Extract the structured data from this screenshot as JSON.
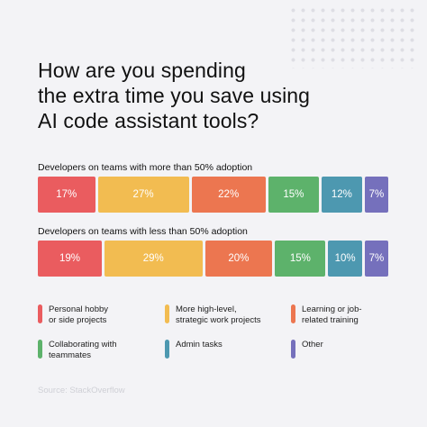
{
  "title_lines": [
    "How are you spending",
    "the extra time you save using",
    "AI code assistant tools?"
  ],
  "chart_data": {
    "type": "bar",
    "stacked": true,
    "orientation": "horizontal",
    "unit": "%",
    "categories": [
      "Developers on teams with more than 50% adoption",
      "Developers on teams with less than 50% adoption"
    ],
    "series": [
      {
        "name": "Personal hobby or side projects",
        "color": "#ea5c5f",
        "values": [
          17,
          19
        ]
      },
      {
        "name": "More high-level, strategic work projects",
        "color": "#f2bc51",
        "values": [
          27,
          29
        ]
      },
      {
        "name": "Learning or job-related training",
        "color": "#ec7650",
        "values": [
          22,
          20
        ]
      },
      {
        "name": "Collaborating with teammates",
        "color": "#5db26b",
        "values": [
          15,
          15
        ]
      },
      {
        "name": "Admin tasks",
        "color": "#4d98b0",
        "values": [
          12,
          10
        ]
      },
      {
        "name": "Other",
        "color": "#7570bc",
        "values": [
          7,
          7
        ]
      }
    ],
    "data_labels": [
      [
        "17%",
        "27%",
        "22%",
        "15%",
        "12%",
        "7%"
      ],
      [
        "19%",
        "29%",
        "20%",
        "15%",
        "10%",
        "7%"
      ]
    ]
  },
  "legend": [
    {
      "text": "Personal hobby\nor side projects",
      "color": "#ea5c5f"
    },
    {
      "text": "More high-level,\nstrategic work projects",
      "color": "#f2bc51"
    },
    {
      "text": "Learning or job-\nrelated training",
      "color": "#ec7650"
    },
    {
      "text": "Collaborating with\nteammates",
      "color": "#5db26b"
    },
    {
      "text": "Admin tasks",
      "color": "#4d98b0"
    },
    {
      "text": "Other",
      "color": "#7570bc"
    }
  ],
  "source": "Source: StackOverflow"
}
